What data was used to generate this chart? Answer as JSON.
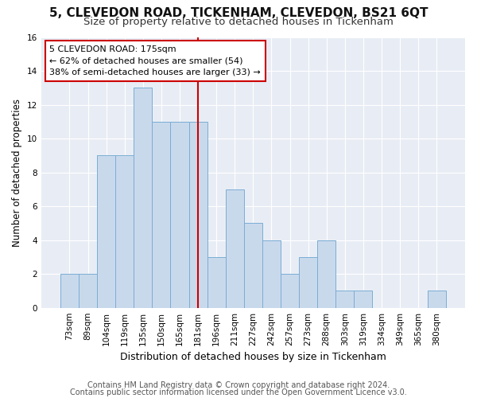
{
  "title": "5, CLEVEDON ROAD, TICKENHAM, CLEVEDON, BS21 6QT",
  "subtitle": "Size of property relative to detached houses in Tickenham",
  "xlabel": "Distribution of detached houses by size in Tickenham",
  "ylabel": "Number of detached properties",
  "categories": [
    "73sqm",
    "89sqm",
    "104sqm",
    "119sqm",
    "135sqm",
    "150sqm",
    "165sqm",
    "181sqm",
    "196sqm",
    "211sqm",
    "227sqm",
    "242sqm",
    "257sqm",
    "273sqm",
    "288sqm",
    "303sqm",
    "319sqm",
    "334sqm",
    "349sqm",
    "365sqm",
    "380sqm"
  ],
  "values": [
    2,
    2,
    9,
    9,
    13,
    11,
    11,
    11,
    3,
    7,
    5,
    4,
    2,
    3,
    4,
    1,
    1,
    0,
    0,
    0,
    1
  ],
  "bar_color": "#c9d9ec",
  "bar_edge_color": "#7aadd4",
  "highlight_line_index": 7,
  "annotation_title": "5 CLEVEDON ROAD: 175sqm",
  "annotation_line1": "← 62% of detached houses are smaller (54)",
  "annotation_line2": "38% of semi-detached houses are larger (33) →",
  "footnote1": "Contains HM Land Registry data © Crown copyright and database right 2024.",
  "footnote2": "Contains public sector information licensed under the Open Government Licence v3.0.",
  "ylim": [
    0,
    16
  ],
  "yticks": [
    0,
    2,
    4,
    6,
    8,
    10,
    12,
    14,
    16
  ],
  "fig_bg_color": "#ffffff",
  "plot_bg_color": "#e8edf5",
  "grid_color": "#ffffff",
  "title_fontsize": 11,
  "subtitle_fontsize": 9.5,
  "tick_fontsize": 7.5,
  "xlabel_fontsize": 9,
  "ylabel_fontsize": 8.5,
  "footnote_fontsize": 7
}
